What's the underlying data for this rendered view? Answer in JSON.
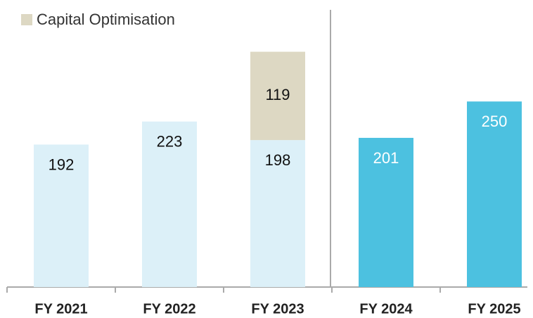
{
  "chart_data": {
    "type": "stacked_bar",
    "categories": [
      "FY 2021",
      "FY 2022",
      "FY 2023",
      "FY 2024",
      "FY 2025"
    ],
    "series": [
      {
        "colors": [
          "#dcf0f8",
          "#dcf0f8",
          "#dcf0f8",
          "#4cc1e0",
          "#4cc1e0"
        ],
        "label_colors": [
          "#111111",
          "#111111",
          "#111111",
          "#ffffff",
          "#ffffff"
        ],
        "values": [
          192,
          223,
          198,
          201,
          250
        ]
      },
      {
        "name": "Capital Optimisation",
        "color": "#ddd8c3",
        "label_color": "#111111",
        "values": [
          null,
          null,
          119,
          null,
          null
        ]
      }
    ],
    "legend": "top-left"
  }
}
